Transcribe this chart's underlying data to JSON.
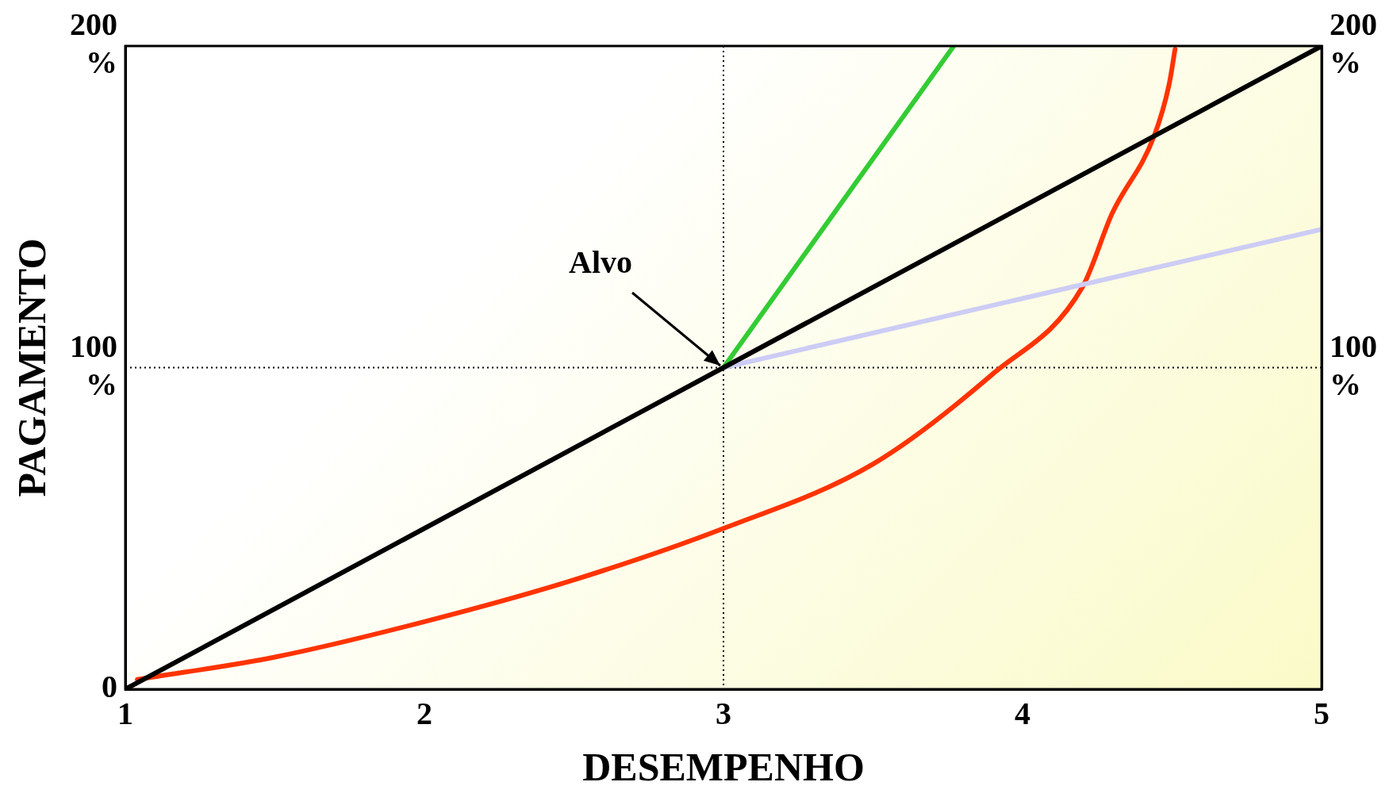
{
  "chart_data": {
    "type": "line",
    "xlabel": "DESEMPENHO",
    "ylabel": "PAGAMENTO",
    "xlim": [
      1,
      5
    ],
    "xticks": [
      1,
      2,
      3,
      4,
      5
    ],
    "ylim": [
      0,
      200
    ],
    "yticks": [
      0,
      {
        "value": 100,
        "label": "100 %"
      },
      {
        "value": 200,
        "label": "200 %"
      }
    ],
    "y2lim": [
      0,
      200
    ],
    "y2ticks": [
      {
        "value": 100,
        "label": "100 %"
      },
      {
        "value": 200,
        "label": "200 %"
      }
    ],
    "grid": false,
    "legend": false,
    "marker": "none",
    "line_style": "solid",
    "series": [
      {
        "color": "#000000",
        "x": [
          1,
          5
        ],
        "values": [
          0,
          200
        ]
      },
      {
        "color": "#33cc33",
        "x": [
          3,
          3.77
        ],
        "values": [
          100,
          200
        ]
      },
      {
        "color": "#ccccf5",
        "x": [
          3,
          5
        ],
        "values": [
          100,
          143
        ]
      },
      {
        "color": "#ff3300",
        "x": [
          1.04,
          1.5,
          2,
          2.5,
          3,
          3.5,
          3.9,
          4.2,
          4.3,
          4.44,
          4.49,
          4.51
        ],
        "values": [
          3,
          10,
          21,
          34,
          50,
          70,
          98,
          125,
          148,
          172,
          188,
          199
        ]
      }
    ],
    "ref_lines": [
      {
        "axis": "x",
        "value": 3,
        "color": "#000000",
        "line_style": "dotted"
      },
      {
        "axis": "y",
        "value": 100,
        "color": "#000000",
        "line_style": "dotted"
      }
    ],
    "annotations": [
      {
        "text": "Alvo",
        "x": 3,
        "y": 100
      }
    ]
  }
}
